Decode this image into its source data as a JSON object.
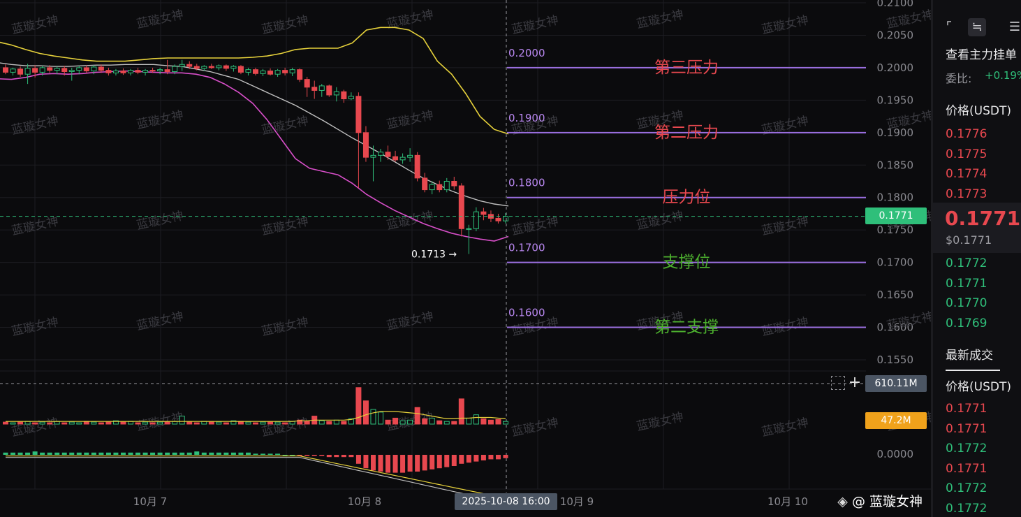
{
  "chart_data": {
    "type": "candlestick",
    "pair_currency": "USDT",
    "y_ticks": [
      "0.2100",
      "0.2050",
      "0.2000",
      "0.1950",
      "0.1900",
      "0.1850",
      "0.1800",
      "0.1750",
      "0.1700",
      "0.1650",
      "0.1600",
      "0.1550"
    ],
    "y_range": [
      0.1525,
      0.2105
    ],
    "x_ticks": [
      "10月 7",
      "10月 8",
      "10月 9",
      "10月 10"
    ],
    "crosshair_time": "2025-10-08 16:00",
    "current_price": "0.1771",
    "low_marker": "0.1713 →",
    "volume_label": "610.11M",
    "volume_ma_label": "47.2M",
    "indicator_zero": "0.0000",
    "levels": [
      {
        "price": 0.2,
        "price_text": "0.2000",
        "label": "第三压力",
        "color": "#e8484f"
      },
      {
        "price": 0.19,
        "price_text": "0.1900",
        "label": "第二压力",
        "color": "#e8484f"
      },
      {
        "price": 0.18,
        "price_text": "0.1800",
        "label": "压力位",
        "color": "#e8484f"
      },
      {
        "price": 0.17,
        "price_text": "0.1700",
        "label": "支撑位",
        "color": "#4caf2e"
      },
      {
        "price": 0.16,
        "price_text": "0.1600",
        "label": "第二支撑",
        "color": "#4caf2e"
      }
    ],
    "candles": [
      {
        "o": 0.2,
        "h": 0.2005,
        "l": 0.199,
        "c": 0.1993
      },
      {
        "o": 0.1993,
        "h": 0.2,
        "l": 0.1988,
        "c": 0.1998
      },
      {
        "o": 0.1998,
        "h": 0.2002,
        "l": 0.1986,
        "c": 0.199
      },
      {
        "o": 0.199,
        "h": 0.2006,
        "l": 0.1975,
        "c": 0.1999
      },
      {
        "o": 0.1999,
        "h": 0.2004,
        "l": 0.1985,
        "c": 0.1993
      },
      {
        "o": 0.1993,
        "h": 0.2003,
        "l": 0.1988,
        "c": 0.2
      },
      {
        "o": 0.2,
        "h": 0.2004,
        "l": 0.1992,
        "c": 0.1996
      },
      {
        "o": 0.1996,
        "h": 0.2002,
        "l": 0.199,
        "c": 0.1999
      },
      {
        "o": 0.1999,
        "h": 0.2003,
        "l": 0.1988,
        "c": 0.1994
      },
      {
        "o": 0.1994,
        "h": 0.2,
        "l": 0.198,
        "c": 0.1996
      },
      {
        "o": 0.1996,
        "h": 0.2003,
        "l": 0.199,
        "c": 0.2
      },
      {
        "o": 0.2,
        "h": 0.2004,
        "l": 0.1992,
        "c": 0.1995
      },
      {
        "o": 0.1995,
        "h": 0.2004,
        "l": 0.199,
        "c": 0.2001
      },
      {
        "o": 0.2001,
        "h": 0.2005,
        "l": 0.1992,
        "c": 0.1996
      },
      {
        "o": 0.1996,
        "h": 0.2,
        "l": 0.1988,
        "c": 0.1992
      },
      {
        "o": 0.1992,
        "h": 0.1998,
        "l": 0.1988,
        "c": 0.1995
      },
      {
        "o": 0.1995,
        "h": 0.1999,
        "l": 0.1989,
        "c": 0.1992
      },
      {
        "o": 0.1992,
        "h": 0.1998,
        "l": 0.1988,
        "c": 0.1996
      },
      {
        "o": 0.1996,
        "h": 0.2,
        "l": 0.199,
        "c": 0.1993
      },
      {
        "o": 0.1993,
        "h": 0.1998,
        "l": 0.1988,
        "c": 0.1996
      },
      {
        "o": 0.1996,
        "h": 0.2,
        "l": 0.1992,
        "c": 0.1995
      },
      {
        "o": 0.1995,
        "h": 0.2,
        "l": 0.199,
        "c": 0.1997
      },
      {
        "o": 0.1997,
        "h": 0.2012,
        "l": 0.199,
        "c": 0.1994
      },
      {
        "o": 0.1994,
        "h": 0.2005,
        "l": 0.199,
        "c": 0.2002
      },
      {
        "o": 0.2002,
        "h": 0.2012,
        "l": 0.1995,
        "c": 0.2005
      },
      {
        "o": 0.2005,
        "h": 0.201,
        "l": 0.1998,
        "c": 0.2002
      },
      {
        "o": 0.2002,
        "h": 0.2006,
        "l": 0.1996,
        "c": 0.1999
      },
      {
        "o": 0.1999,
        "h": 0.2004,
        "l": 0.1995,
        "c": 0.2002
      },
      {
        "o": 0.2002,
        "h": 0.2006,
        "l": 0.1998,
        "c": 0.2
      },
      {
        "o": 0.2,
        "h": 0.2005,
        "l": 0.1996,
        "c": 0.2003
      },
      {
        "o": 0.2003,
        "h": 0.2005,
        "l": 0.1995,
        "c": 0.1999
      },
      {
        "o": 0.1999,
        "h": 0.2004,
        "l": 0.1994,
        "c": 0.2002
      },
      {
        "o": 0.2002,
        "h": 0.2004,
        "l": 0.199,
        "c": 0.1993
      },
      {
        "o": 0.1993,
        "h": 0.2,
        "l": 0.1988,
        "c": 0.1997
      },
      {
        "o": 0.1997,
        "h": 0.2,
        "l": 0.1988,
        "c": 0.1991
      },
      {
        "o": 0.1991,
        "h": 0.1998,
        "l": 0.1987,
        "c": 0.1995
      },
      {
        "o": 0.1995,
        "h": 0.1999,
        "l": 0.1988,
        "c": 0.199
      },
      {
        "o": 0.199,
        "h": 0.1998,
        "l": 0.1986,
        "c": 0.1996
      },
      {
        "o": 0.1996,
        "h": 0.2,
        "l": 0.1988,
        "c": 0.1992
      },
      {
        "o": 0.1992,
        "h": 0.2,
        "l": 0.1987,
        "c": 0.1997
      },
      {
        "o": 0.1997,
        "h": 0.1999,
        "l": 0.1978,
        "c": 0.1982
      },
      {
        "o": 0.1982,
        "h": 0.1986,
        "l": 0.1955,
        "c": 0.197
      },
      {
        "o": 0.197,
        "h": 0.198,
        "l": 0.1952,
        "c": 0.1965
      },
      {
        "o": 0.1965,
        "h": 0.1975,
        "l": 0.1955,
        "c": 0.1972
      },
      {
        "o": 0.1972,
        "h": 0.1974,
        "l": 0.1955,
        "c": 0.1958
      },
      {
        "o": 0.1958,
        "h": 0.197,
        "l": 0.1948,
        "c": 0.1963
      },
      {
        "o": 0.1963,
        "h": 0.1966,
        "l": 0.1946,
        "c": 0.1952
      },
      {
        "o": 0.1952,
        "h": 0.1962,
        "l": 0.195,
        "c": 0.1956
      },
      {
        "o": 0.1956,
        "h": 0.1962,
        "l": 0.1815,
        "c": 0.19
      },
      {
        "o": 0.19,
        "h": 0.191,
        "l": 0.1855,
        "c": 0.1862
      },
      {
        "o": 0.1862,
        "h": 0.188,
        "l": 0.1825,
        "c": 0.1865
      },
      {
        "o": 0.1865,
        "h": 0.1875,
        "l": 0.1855,
        "c": 0.187
      },
      {
        "o": 0.187,
        "h": 0.188,
        "l": 0.1858,
        "c": 0.1863
      },
      {
        "o": 0.1863,
        "h": 0.1872,
        "l": 0.1855,
        "c": 0.1858
      },
      {
        "o": 0.1858,
        "h": 0.1868,
        "l": 0.1852,
        "c": 0.1862
      },
      {
        "o": 0.1862,
        "h": 0.1876,
        "l": 0.1855,
        "c": 0.1865
      },
      {
        "o": 0.1865,
        "h": 0.187,
        "l": 0.1825,
        "c": 0.183
      },
      {
        "o": 0.183,
        "h": 0.1838,
        "l": 0.1808,
        "c": 0.1812
      },
      {
        "o": 0.1812,
        "h": 0.1825,
        "l": 0.1805,
        "c": 0.182
      },
      {
        "o": 0.182,
        "h": 0.1826,
        "l": 0.1808,
        "c": 0.1812
      },
      {
        "o": 0.1812,
        "h": 0.183,
        "l": 0.1808,
        "c": 0.1825
      },
      {
        "o": 0.1825,
        "h": 0.1832,
        "l": 0.1812,
        "c": 0.1818
      },
      {
        "o": 0.1818,
        "h": 0.1822,
        "l": 0.174,
        "c": 0.1752
      },
      {
        "o": 0.1752,
        "h": 0.1758,
        "l": 0.1713,
        "c": 0.1752
      },
      {
        "o": 0.1752,
        "h": 0.1785,
        "l": 0.1748,
        "c": 0.1778
      },
      {
        "o": 0.1778,
        "h": 0.1784,
        "l": 0.1765,
        "c": 0.1774
      },
      {
        "o": 0.1774,
        "h": 0.178,
        "l": 0.1762,
        "c": 0.1768
      },
      {
        "o": 0.1768,
        "h": 0.1775,
        "l": 0.176,
        "c": 0.1764
      },
      {
        "o": 0.1764,
        "h": 0.1776,
        "l": 0.176,
        "c": 0.1771
      }
    ],
    "volumes": [
      3,
      2,
      3,
      4,
      2,
      3,
      2,
      4,
      2,
      3,
      2,
      4,
      3,
      2,
      3,
      5,
      3,
      4,
      2,
      3,
      2,
      3,
      3,
      4,
      12,
      3,
      2,
      4,
      3,
      3,
      2,
      5,
      4,
      3,
      2,
      3,
      3,
      3,
      2,
      4,
      6,
      4,
      12,
      5,
      4,
      6,
      4,
      8,
      55,
      35,
      22,
      18,
      6,
      9,
      5,
      6,
      25,
      8,
      9,
      5,
      4,
      4,
      38,
      9,
      14,
      8,
      6,
      7,
      4
    ],
    "volume_ma": [
      4,
      4,
      4,
      4,
      4,
      4,
      4,
      4,
      4,
      4,
      4,
      4,
      4,
      4,
      4,
      4,
      4,
      4,
      4,
      4,
      4,
      4,
      4,
      4,
      4,
      4,
      4,
      4,
      4,
      4,
      4,
      4,
      4,
      4,
      4,
      4,
      4,
      4,
      4,
      4,
      5,
      5,
      6,
      6,
      6,
      6,
      6,
      7,
      10,
      14,
      17,
      19,
      19,
      19,
      18,
      17,
      16,
      14,
      12,
      10,
      8,
      8,
      9,
      9,
      10,
      10,
      10,
      9,
      8
    ],
    "macd_hist": [
      2,
      2,
      2,
      2,
      3,
      2,
      2,
      2,
      2,
      2,
      2,
      2,
      2,
      2,
      2,
      2,
      2,
      2,
      2,
      2,
      2,
      2,
      2,
      2,
      2,
      2,
      3,
      2,
      2,
      2,
      2,
      2,
      2,
      2,
      1,
      1,
      1,
      1,
      0,
      0,
      -1,
      -1,
      -1,
      -1,
      -2,
      -2,
      -2,
      -2,
      -8,
      -12,
      -14,
      -15,
      -16,
      -16,
      -16,
      -15,
      -15,
      -14,
      -13,
      -12,
      -11,
      -10,
      -8,
      -7,
      -6,
      -5,
      -4,
      -4,
      -3
    ],
    "bands": {
      "upper": [
        0.204,
        0.2035,
        0.2028,
        0.2022,
        0.2018,
        0.2015,
        0.2012,
        0.201,
        0.201,
        0.201,
        0.2012,
        0.2014,
        0.2015,
        0.2015,
        0.2015,
        0.2015,
        0.2015,
        0.2015,
        0.2016,
        0.2018,
        0.2022,
        0.2028,
        0.203,
        0.203,
        0.203,
        0.2038,
        0.2058,
        0.2062,
        0.2062,
        0.2058,
        0.2045,
        0.201,
        0.199,
        0.196,
        0.1925,
        0.1905,
        0.1898
      ],
      "middle": [
        0.2008,
        0.2005,
        0.2003,
        0.2003,
        0.2002,
        0.2002,
        0.2003,
        0.2004,
        0.2004,
        0.2005,
        0.2005,
        0.2005,
        0.2003,
        0.2002,
        0.1998,
        0.1994,
        0.1988,
        0.1982,
        0.1972,
        0.1962,
        0.1952,
        0.1942,
        0.193,
        0.1918,
        0.1905,
        0.1892,
        0.188,
        0.1868,
        0.1855,
        0.1842,
        0.183,
        0.182,
        0.181,
        0.1802,
        0.1795,
        0.179,
        0.1787
      ],
      "lower": [
        0.1983,
        0.1982,
        0.1985,
        0.199,
        0.1991,
        0.199,
        0.1991,
        0.1993,
        0.1994,
        0.1995,
        0.1994,
        0.1993,
        0.1992,
        0.1992,
        0.199,
        0.1985,
        0.1975,
        0.1962,
        0.1945,
        0.192,
        0.189,
        0.186,
        0.1845,
        0.184,
        0.1835,
        0.1822,
        0.1805,
        0.1792,
        0.178,
        0.177,
        0.176,
        0.1752,
        0.1745,
        0.174,
        0.1736,
        0.1733,
        0.174
      ]
    },
    "colors": {
      "up": "#2fbf7a",
      "down": "#e8484f",
      "upper_band": "#e7d23b",
      "middle_band": "#c0c0c0",
      "lower_band": "#d84fc9",
      "level_line": "#9b6fe0"
    }
  },
  "watermark_text": "蓝璇女神",
  "footer_badge": "@ 蓝璇女神",
  "right_panel": {
    "order_book_link": "查看主力挂单",
    "ratio_label": "委比:",
    "ratio_value": "+0.19%",
    "price_header": "价格(USDT)",
    "asks": [
      "0.1776",
      "0.1775",
      "0.1774",
      "0.1773"
    ],
    "last_price": "0.1771",
    "last_price_usd": "$0.1771",
    "bids": [
      "0.1772",
      "0.1771",
      "0.1770",
      "0.1769"
    ],
    "trades_tab": "最新成交",
    "trades_price_header": "价格(USDT)",
    "trades": [
      {
        "price": "0.1771",
        "side": "sell"
      },
      {
        "price": "0.1771",
        "side": "sell"
      },
      {
        "price": "0.1772",
        "side": "buy"
      },
      {
        "price": "0.1771",
        "side": "sell"
      },
      {
        "price": "0.1772",
        "side": "buy"
      },
      {
        "price": "0.1772",
        "side": "buy"
      }
    ]
  }
}
